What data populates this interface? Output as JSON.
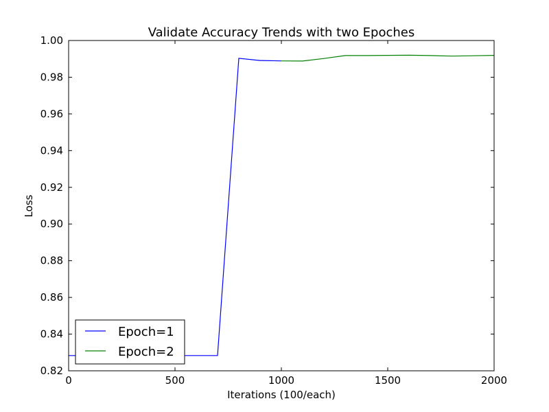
{
  "chart_data": {
    "type": "line",
    "title": "Validate Accuracy Trends with two Epoches",
    "xlabel": "Iterations (100/each)",
    "ylabel": "Loss",
    "xlim": [
      0,
      2000
    ],
    "ylim": [
      0.82,
      1.0
    ],
    "xticks": [
      0,
      500,
      1000,
      1500,
      2000
    ],
    "xtick_labels": [
      "0",
      "500",
      "1000",
      "1500",
      "2000"
    ],
    "yticks": [
      0.82,
      0.84,
      0.86,
      0.88,
      0.9,
      0.92,
      0.94,
      0.96,
      0.98,
      1.0
    ],
    "ytick_labels": [
      "0.82",
      "0.84",
      "0.86",
      "0.88",
      "0.90",
      "0.92",
      "0.94",
      "0.96",
      "0.98",
      "1.00"
    ],
    "grid": false,
    "legend_position": "lower-left",
    "series": [
      {
        "name": "Epoch=1",
        "color": "#0000ff",
        "x": [
          0,
          100,
          200,
          300,
          400,
          500,
          600,
          700,
          800,
          900,
          1000
        ],
        "y": [
          0.8283,
          0.8283,
          0.8283,
          0.8283,
          0.8283,
          0.8283,
          0.8283,
          0.8283,
          0.9903,
          0.9891,
          0.9889
        ]
      },
      {
        "name": "Epoch=2",
        "color": "#008000",
        "x": [
          1000,
          1100,
          1200,
          1300,
          1400,
          1500,
          1600,
          1700,
          1800,
          1900,
          2000
        ],
        "y": [
          0.9889,
          0.9888,
          0.9902,
          0.9918,
          0.9918,
          0.9919,
          0.992,
          0.9918,
          0.9915,
          0.9917,
          0.9919
        ]
      }
    ]
  }
}
